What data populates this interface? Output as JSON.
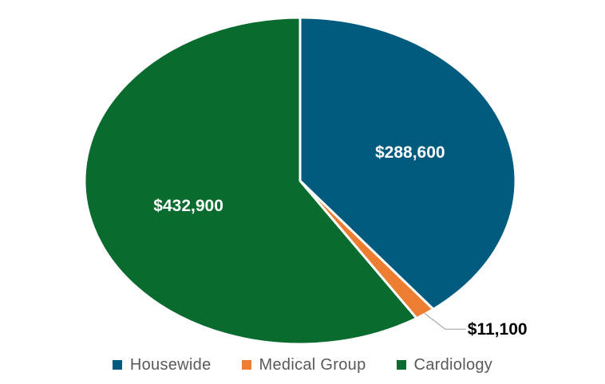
{
  "chart_data": {
    "type": "pie",
    "title": "",
    "categories": [
      "Housewide",
      "Medical Group",
      "Cardiology"
    ],
    "values": [
      288600,
      11100,
      432900
    ],
    "labels": [
      "$288,600",
      "$11,100",
      "$432,900"
    ],
    "colors": [
      "#005B7F",
      "#ED7D31",
      "#096B2E"
    ],
    "label_colors": [
      "#ffffff",
      "#000000",
      "#ffffff"
    ],
    "start_angle_deg": 0,
    "direction": "clockwise",
    "legend_position": "bottom"
  }
}
